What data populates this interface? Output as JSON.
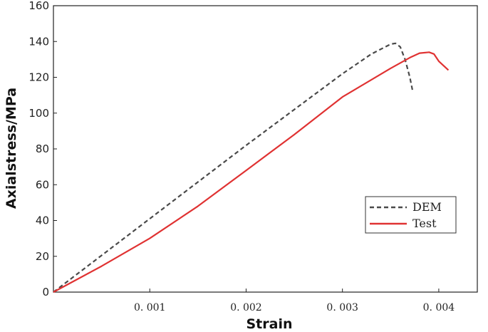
{
  "chart_data": {
    "type": "line",
    "title": "",
    "xlabel": "Strain",
    "ylabel": "Axialstress/MPa",
    "xlim": [
      0,
      0.0044
    ],
    "ylim": [
      0,
      160
    ],
    "x_ticks": [
      0.001,
      0.002,
      0.003,
      0.004
    ],
    "x_tick_labels": [
      "0. 001",
      "0. 002",
      "0. 003",
      "0. 004"
    ],
    "y_ticks": [
      0,
      20,
      40,
      60,
      80,
      100,
      120,
      140,
      160
    ],
    "y_tick_labels": [
      "0",
      "20",
      "40",
      "60",
      "80",
      "100",
      "120",
      "140",
      "160"
    ],
    "legend_position": "lower-right",
    "grid": false,
    "series": [
      {
        "name": "DEM",
        "color": "#4a4a4a",
        "dash": "dashed",
        "x": [
          0,
          0.0005,
          0.001,
          0.0015,
          0.002,
          0.0025,
          0.003,
          0.0033,
          0.0035,
          0.00355,
          0.0036,
          0.00365,
          0.0037,
          0.00373
        ],
        "y": [
          0,
          20.5,
          41,
          61.5,
          82,
          102,
          122,
          133,
          138.5,
          139,
          137,
          130,
          120,
          112
        ]
      },
      {
        "name": "Test",
        "color": "#e03232",
        "dash": "solid",
        "x": [
          0,
          0.0005,
          0.001,
          0.0015,
          0.002,
          0.0025,
          0.003,
          0.0035,
          0.0037,
          0.0038,
          0.0039,
          0.00395,
          0.004,
          0.0041
        ],
        "y": [
          0,
          14.5,
          30,
          48,
          68,
          88,
          109,
          125,
          131,
          133.5,
          134,
          133,
          129,
          124
        ]
      }
    ]
  }
}
